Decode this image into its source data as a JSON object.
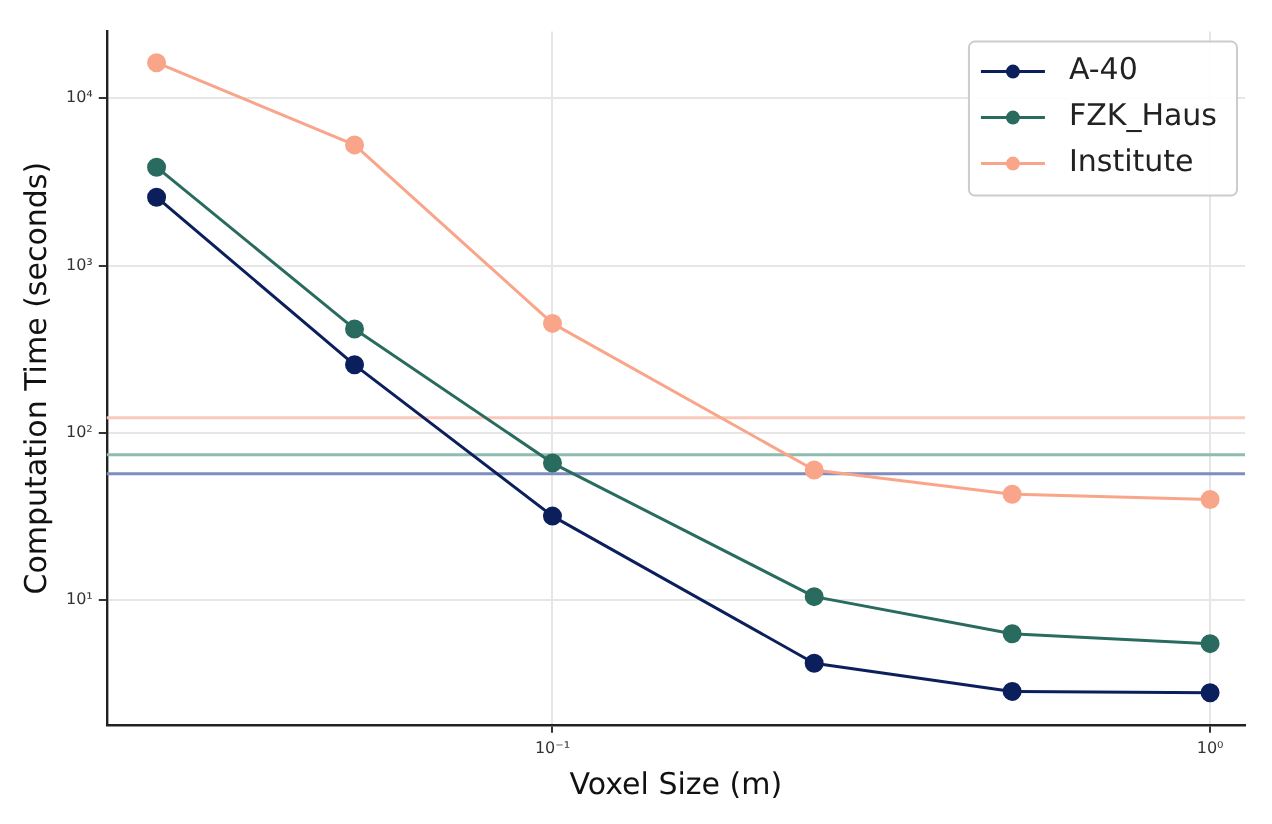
{
  "chart_data": {
    "type": "line",
    "xlabel": "Voxel Size (m)",
    "ylabel": "Computation Time (seconds)",
    "x": [
      0.025,
      0.05,
      0.1,
      0.25,
      0.5,
      1
    ],
    "series": [
      {
        "name": "A-40",
        "color": "#0b1f5c",
        "values": [
          2560,
          255,
          31.8,
          4.2,
          2.85,
          2.8
        ]
      },
      {
        "name": "FZK_Haus",
        "color": "#2a6b5f",
        "values": [
          3870,
          418,
          66,
          10.5,
          6.3,
          5.5
        ]
      },
      {
        "name": "Institute",
        "color": "#f9a58a",
        "values": [
          16300,
          5260,
          451,
          60,
          43,
          40
        ]
      }
    ],
    "ref_lines": [
      {
        "axis": "y",
        "value": 123,
        "color": "#f9c9bb"
      },
      {
        "axis": "y",
        "value": 74,
        "color": "#8fbcb0"
      },
      {
        "axis": "y",
        "value": 57,
        "color": "#7d8dc0"
      }
    ],
    "log": "xy",
    "xlim": [
      0.021,
      1.13
    ],
    "ylim": [
      1.8,
      25000
    ],
    "xticks": [
      {
        "value": 0.1,
        "label": "10⁻¹"
      },
      {
        "value": 1,
        "label": "10⁰"
      }
    ],
    "yticks": [
      {
        "value": 10,
        "label": "10¹"
      },
      {
        "value": 100,
        "label": "10²"
      },
      {
        "value": 1000,
        "label": "10³"
      },
      {
        "value": 10000,
        "label": "10⁴"
      }
    ],
    "grid": true,
    "legend": "top right",
    "marker": "circle",
    "line_style": "solid"
  }
}
